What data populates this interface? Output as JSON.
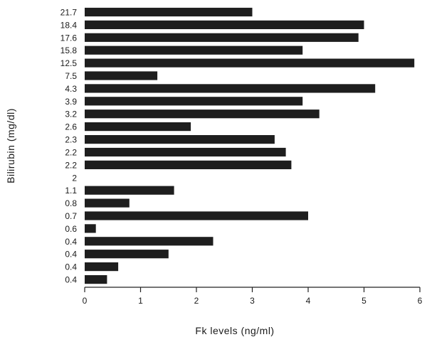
{
  "chart_data": {
    "type": "bar",
    "orientation": "horizontal",
    "title": "",
    "xlabel": "Fk levels  (ng/ml)",
    "ylabel": "Bilirubin    (mg/dl)",
    "xlim": [
      0,
      6
    ],
    "x_ticks": [
      "0",
      "1",
      "2",
      "3",
      "4",
      "5",
      "6"
    ],
    "grid": false,
    "legend": "none",
    "categories": [
      "21.7",
      "18.4",
      "17.6",
      "15.8",
      "12.5",
      "7.5",
      "4.3",
      "3.9",
      "3.2",
      "2.6",
      "2.3",
      "2.2",
      "2.2",
      "2",
      "1.1",
      "0.8",
      "0.7",
      "0.6",
      "0.4",
      "0.4",
      "0.4",
      "0.4"
    ],
    "values": [
      3.0,
      5.0,
      4.9,
      3.9,
      5.9,
      1.3,
      5.2,
      3.9,
      4.2,
      1.9,
      3.4,
      3.6,
      3.7,
      0,
      1.6,
      0.8,
      4.0,
      0.2,
      2.3,
      1.5,
      0.6,
      0.4
    ],
    "bar_color": "#1e1e1e"
  }
}
